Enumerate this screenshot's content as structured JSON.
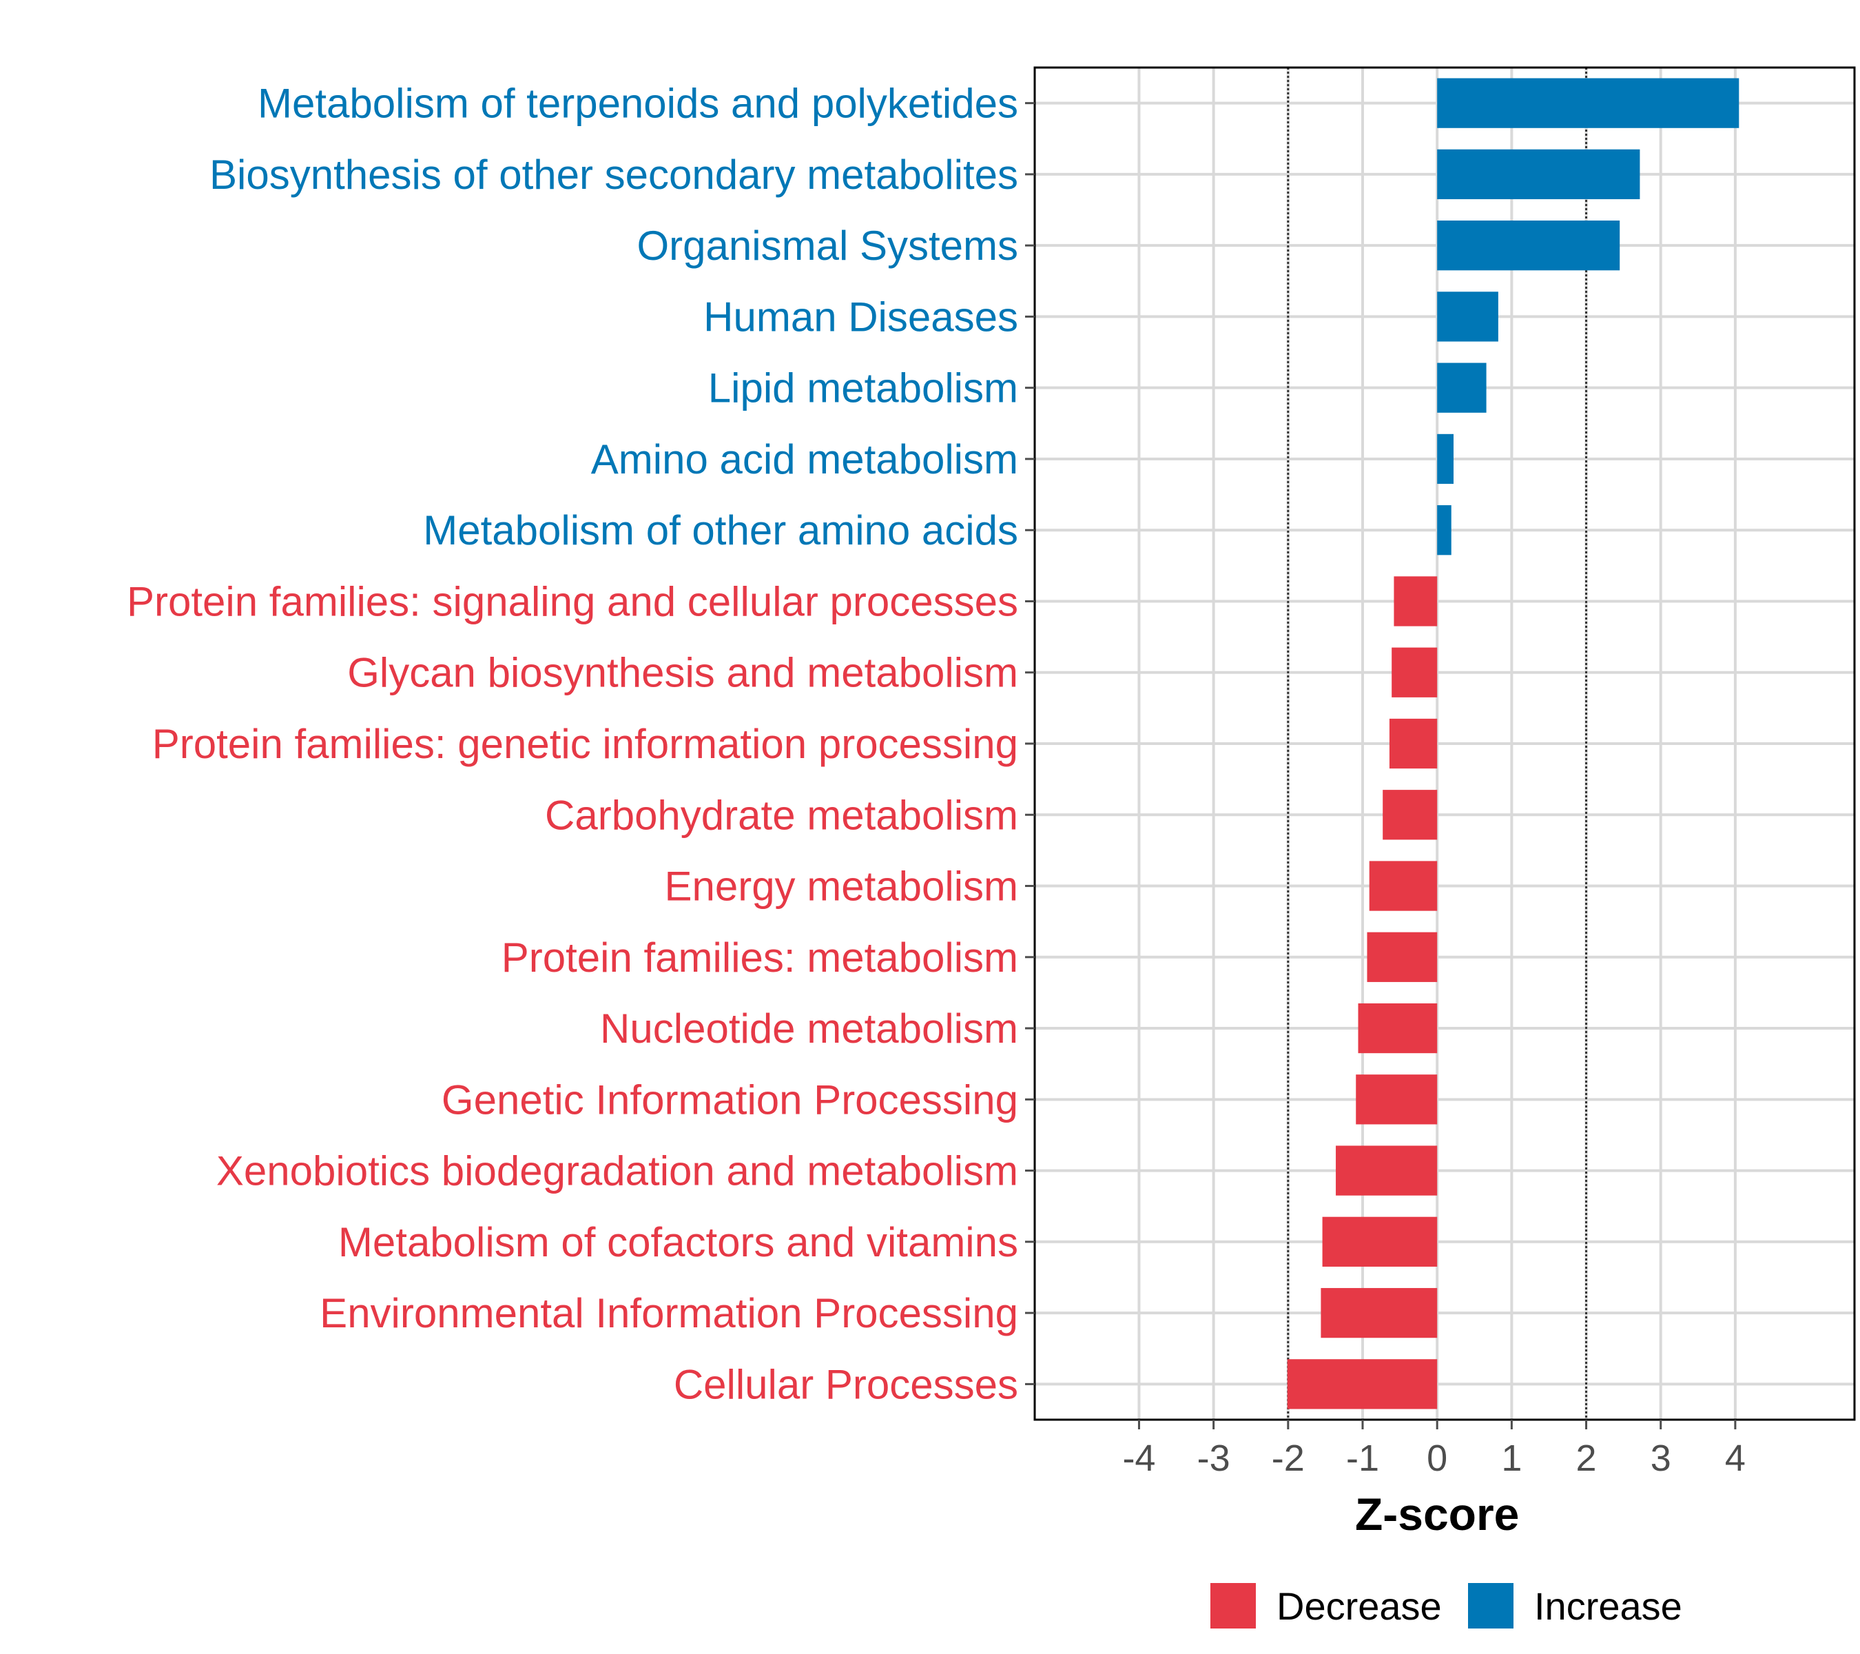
{
  "colors": {
    "decrease": "#e63946",
    "increase": "#0077b6",
    "grid": "#d9d9d9",
    "threshold": "#333333",
    "panel_border": "#000000",
    "tick": "#4d4d4d"
  },
  "chart_data": {
    "type": "bar",
    "orientation": "horizontal",
    "title": "",
    "xlabel": "Z-score",
    "ylabel": "",
    "xlim": [
      -5.4,
      5.6
    ],
    "xticks": [
      -4,
      -3,
      -2,
      -1,
      0,
      1,
      2,
      3,
      4
    ],
    "xtick_labels": [
      "-4",
      "-3",
      "-2",
      "-1",
      "0",
      "1",
      "2",
      "3",
      "4"
    ],
    "thresholds": [
      -2,
      2
    ],
    "grid": true,
    "legend_position": "bottom",
    "legend": [
      {
        "key": "decrease",
        "label": "Decrease"
      },
      {
        "key": "increase",
        "label": "Increase"
      }
    ],
    "categories": [
      "Metabolism of terpenoids and polyketides",
      "Biosynthesis of other secondary metabolites",
      "Organismal Systems",
      "Human Diseases",
      "Lipid metabolism",
      "Amino acid metabolism",
      "Metabolism of other amino acids",
      "Protein families: signaling and cellular processes",
      "Glycan biosynthesis and metabolism",
      "Protein families: genetic information processing",
      "Carbohydrate metabolism",
      "Energy metabolism",
      "Protein families: metabolism",
      "Nucleotide metabolism",
      "Genetic Information Processing",
      "Xenobiotics biodegradation and metabolism",
      "Metabolism of cofactors and vitamins",
      "Environmental Information Processing",
      "Cellular Processes"
    ],
    "values": [
      4.05,
      2.72,
      2.45,
      0.82,
      0.66,
      0.22,
      0.19,
      -0.58,
      -0.61,
      -0.64,
      -0.73,
      -0.91,
      -0.94,
      -1.06,
      -1.09,
      -1.36,
      -1.54,
      -1.56,
      -2.01
    ],
    "groups": [
      "increase",
      "increase",
      "increase",
      "increase",
      "increase",
      "increase",
      "increase",
      "decrease",
      "decrease",
      "decrease",
      "decrease",
      "decrease",
      "decrease",
      "decrease",
      "decrease",
      "decrease",
      "decrease",
      "decrease",
      "decrease"
    ]
  }
}
